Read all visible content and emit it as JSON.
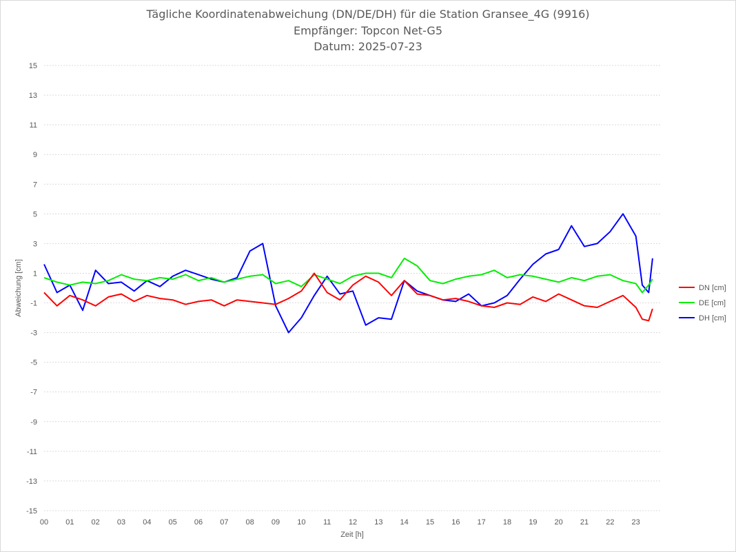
{
  "chart_data": {
    "type": "line",
    "title": "Tägliche Koordinatenabweichung (DN/DE/DH) für die Station Gransee_4G (9916)",
    "subtitle": "Empfänger: Topcon Net-G5",
    "date_line": "Datum: 2025-07-23",
    "xlabel": "Zeit [h]",
    "ylabel": "Abweichung [cm]",
    "x_ticks": [
      "00",
      "01",
      "02",
      "03",
      "04",
      "05",
      "06",
      "07",
      "08",
      "09",
      "10",
      "11",
      "12",
      "13",
      "14",
      "15",
      "16",
      "17",
      "18",
      "19",
      "20",
      "21",
      "22",
      "23"
    ],
    "y_ticks": [
      "15",
      "13",
      "11",
      "9",
      "7",
      "5",
      "3",
      "1",
      "-1",
      "-3",
      "-5",
      "-7",
      "-9",
      "-11",
      "-13",
      "-15"
    ],
    "xlim": [
      0,
      24
    ],
    "ylim": [
      -15,
      15
    ],
    "grid": "horizontal dotted",
    "legend_position": "right",
    "x": [
      0,
      0.5,
      1,
      1.5,
      2,
      2.5,
      3,
      3.5,
      4,
      4.5,
      5,
      5.5,
      6,
      6.5,
      7,
      7.5,
      8,
      8.5,
      9,
      9.5,
      10,
      10.5,
      11,
      11.5,
      12,
      12.5,
      13,
      13.5,
      14,
      14.5,
      15,
      15.5,
      16,
      16.5,
      17,
      17.5,
      18,
      18.5,
      19,
      19.5,
      20,
      20.5,
      21,
      21.5,
      22,
      22.5,
      23,
      23.25,
      23.5,
      23.65
    ],
    "series": [
      {
        "name": "DN [cm]",
        "color": "#ff0000",
        "values": [
          -0.3,
          -1.2,
          -0.5,
          -0.8,
          -1.2,
          -0.6,
          -0.4,
          -0.9,
          -0.5,
          -0.7,
          -0.8,
          -1.1,
          -0.9,
          -0.8,
          -1.2,
          -0.8,
          -0.9,
          -1.0,
          -1.1,
          -0.7,
          -0.2,
          1.0,
          -0.3,
          -0.8,
          0.2,
          0.8,
          0.4,
          -0.5,
          0.5,
          -0.4,
          -0.5,
          -0.8,
          -0.7,
          -0.9,
          -1.2,
          -1.3,
          -1.0,
          -1.1,
          -0.6,
          -0.9,
          -0.4,
          -0.8,
          -1.2,
          -1.3,
          -0.9,
          -0.5,
          -1.3,
          -2.1,
          -2.2,
          -1.4
        ]
      },
      {
        "name": "DE [cm]",
        "color": "#00ee00",
        "values": [
          0.7,
          0.4,
          0.2,
          0.4,
          0.3,
          0.5,
          0.9,
          0.6,
          0.5,
          0.7,
          0.6,
          0.9,
          0.5,
          0.7,
          0.4,
          0.6,
          0.8,
          0.9,
          0.3,
          0.5,
          0.1,
          0.9,
          0.6,
          0.3,
          0.8,
          1.0,
          1.0,
          0.7,
          2.0,
          1.5,
          0.5,
          0.3,
          0.6,
          0.8,
          0.9,
          1.2,
          0.7,
          0.9,
          0.8,
          0.6,
          0.4,
          0.7,
          0.5,
          0.8,
          0.9,
          0.5,
          0.3,
          -0.3,
          0.2,
          0.6
        ]
      },
      {
        "name": "DH [cm]",
        "color": "#0000ff",
        "values": [
          1.6,
          -0.3,
          0.2,
          -1.5,
          1.2,
          0.3,
          0.4,
          -0.2,
          0.5,
          0.1,
          0.8,
          1.2,
          0.9,
          0.6,
          0.4,
          0.7,
          2.5,
          3.0,
          -1.2,
          -3.0,
          -2.0,
          -0.5,
          0.8,
          -0.4,
          -0.2,
          -2.5,
          -2.0,
          -2.1,
          0.5,
          -0.2,
          -0.5,
          -0.8,
          -0.9,
          -0.4,
          -1.2,
          -1.0,
          -0.5,
          0.6,
          1.6,
          2.3,
          2.6,
          4.2,
          2.8,
          3.0,
          3.8,
          5.0,
          3.5,
          0.2,
          -0.3,
          2.0
        ]
      }
    ]
  }
}
